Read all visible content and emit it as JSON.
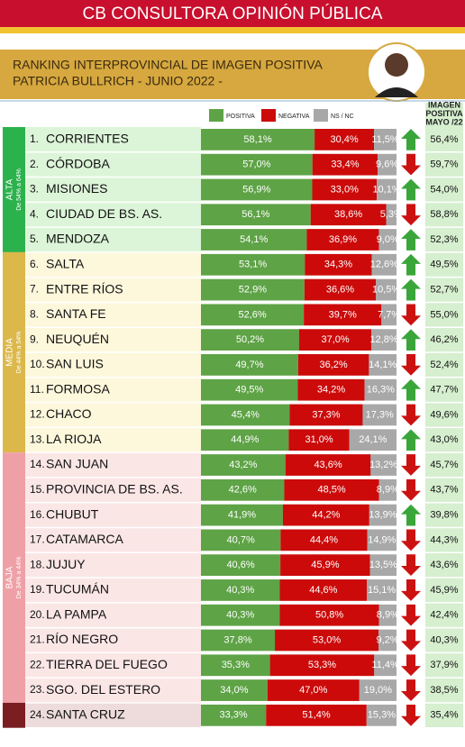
{
  "chart_data": {
    "type": "bar",
    "orientation": "horizontal",
    "stacked": true,
    "title": "CB CONSULTORA OPINIÓN PÚBLICA",
    "subtitle": [
      "RANKING INTERPROVINCIAL DE IMAGEN POSITIVA",
      "PATRICIA BULLRICH - JUNIO 2022 -"
    ],
    "xlim": [
      0,
      100
    ],
    "ranks": [
      "1.",
      "2.",
      "3.",
      "4.",
      "5.",
      "6.",
      "7.",
      "8.",
      "9.",
      "10.",
      "11.",
      "12.",
      "13.",
      "14.",
      "15.",
      "16.",
      "17.",
      "18.",
      "19.",
      "20.",
      "21.",
      "22.",
      "23.",
      "24."
    ],
    "categories": [
      "CORRIENTES",
      "CÓRDOBA",
      "MISIONES",
      "CIUDAD DE BS. AS.",
      "MENDOZA",
      "SALTA",
      "ENTRE RÍOS",
      "SANTA FE",
      "NEUQUÉN",
      "SAN LUIS",
      "FORMOSA",
      "CHACO",
      "LA RIOJA",
      "SAN JUAN",
      "PROVINCIA DE BS. AS.",
      "CHUBUT",
      "CATAMARCA",
      "JUJUY",
      "TUCUMÁN",
      "LA PAMPA",
      "RÍO NEGRO",
      "TIERRA DEL FUEGO",
      "SGO. DEL ESTERO",
      "SANTA CRUZ"
    ],
    "series": [
      {
        "name": "POSITIVA",
        "color": "#5ea346",
        "values": [
          58.1,
          57.0,
          56.9,
          56.1,
          54.1,
          53.1,
          52.9,
          52.6,
          50.2,
          49.7,
          49.5,
          45.4,
          44.9,
          43.2,
          42.6,
          41.9,
          40.7,
          40.6,
          40.3,
          40.3,
          37.8,
          35.3,
          34.0,
          33.3
        ],
        "value_labels": [
          "58,1%",
          "57,0%",
          "56,9%",
          "56,1%",
          "54,1%",
          "53,1%",
          "52,9%",
          "52,6%",
          "50,2%",
          "49,7%",
          "49,5%",
          "45,4%",
          "44,9%",
          "43,2%",
          "42,6%",
          "41,9%",
          "40,7%",
          "40,6%",
          "40,3%",
          "40,3%",
          "37,8%",
          "35,3%",
          "34,0%",
          "33,3%"
        ]
      },
      {
        "name": "NEGATIVA",
        "color": "#cc0a0a",
        "values": [
          30.4,
          33.4,
          33.0,
          38.6,
          36.9,
          34.3,
          36.6,
          39.7,
          37.0,
          36.2,
          34.2,
          37.3,
          31.0,
          43.6,
          48.5,
          44.2,
          44.4,
          45.9,
          44.6,
          50.8,
          53.0,
          53.3,
          47.0,
          51.4
        ],
        "value_labels": [
          "30,4%",
          "33,4%",
          "33,0%",
          "38,6%",
          "36,9%",
          "34,3%",
          "36,6%",
          "39,7%",
          "37,0%",
          "36,2%",
          "34,2%",
          "37,3%",
          "31,0%",
          "43,6%",
          "48,5%",
          "44,2%",
          "44,4%",
          "45,9%",
          "44,6%",
          "50,8%",
          "53,0%",
          "53,3%",
          "47,0%",
          "51,4%"
        ]
      },
      {
        "name": "NS / NC",
        "color": "#a8a8a8",
        "values": [
          11.5,
          9.6,
          10.1,
          5.3,
          9.0,
          12.6,
          10.5,
          7.7,
          12.8,
          14.1,
          16.3,
          17.3,
          24.1,
          13.2,
          8.9,
          13.9,
          14.9,
          13.5,
          15.1,
          8.9,
          9.2,
          11.4,
          19.0,
          15.3
        ],
        "value_labels": [
          "11,5%",
          "9,6%",
          "10,1%",
          "5,3%",
          "9,0%",
          "12,6%",
          "10,5%",
          "7,7%",
          "12,8%",
          "14,1%",
          "16,3%",
          "17,3%",
          "24,1%",
          "13,2%",
          "8,9%",
          "13,9%",
          "14,9%",
          "13,5%",
          "15,1%",
          "8,9%",
          "9,2%",
          "11,4%",
          "19,0%",
          "15,3%"
        ]
      }
    ],
    "trend": [
      "up",
      "down",
      "up",
      "down",
      "up",
      "up",
      "up",
      "down",
      "up",
      "down",
      "up",
      "down",
      "up",
      "down",
      "down",
      "up",
      "down",
      "down",
      "down",
      "down",
      "down",
      "down",
      "down",
      "down"
    ],
    "trend_colors": {
      "up": "#3aa63a",
      "down": "#cc1111"
    },
    "previous": {
      "name": [
        "IMAGEN",
        "POSITIVA",
        "MAYO /22"
      ],
      "values": [
        56.4,
        59.7,
        54.0,
        58.8,
        52.3,
        49.5,
        52.7,
        55.0,
        46.2,
        52.4,
        47.7,
        49.6,
        43.0,
        45.7,
        43.7,
        39.8,
        44.3,
        43.6,
        45.9,
        42.4,
        40.3,
        37.9,
        38.5,
        35.4
      ],
      "value_labels": [
        "56,4%",
        "59,7%",
        "54,0%",
        "58,8%",
        "52,3%",
        "49,5%",
        "52,7%",
        "55,0%",
        "46,2%",
        "52,4%",
        "47,7%",
        "49,6%",
        "43,0%",
        "45,7%",
        "43,7%",
        "39,8%",
        "44,3%",
        "43,6%",
        "45,9%",
        "42,4%",
        "40,3%",
        "37,9%",
        "38,5%",
        "35,4%"
      ],
      "background": "#d6efcf"
    },
    "groups": [
      {
        "name": "ALTA",
        "range": "De 54% a 64%",
        "color": "#2bb24c",
        "background": "#dcf5d8",
        "count": 5
      },
      {
        "name": "MEDIA",
        "range": "De 44% a 54%",
        "color": "#dcb84a",
        "background": "#fdf8dc",
        "count": 8
      },
      {
        "name": "BAJA",
        "range": "De 34% a 44%",
        "color": "#efa0a6",
        "background": "#fbe6e6",
        "count": 10
      },
      {
        "color": "#7a1e22",
        "background": "#eedcdc",
        "count": 1
      }
    ]
  }
}
